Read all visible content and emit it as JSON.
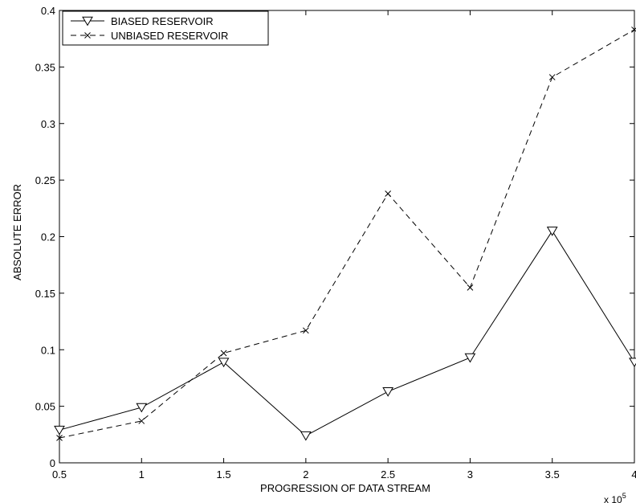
{
  "chart_data": {
    "type": "line",
    "title": "",
    "xlabel": "PROGRESSION OF DATA STREAM",
    "ylabel": "ABSOLUTE ERROR",
    "x_multiplier_label": "x 10",
    "x_multiplier_exponent": "5",
    "xlim": [
      0.5,
      4
    ],
    "ylim": [
      0,
      0.4
    ],
    "x_ticks": [
      0.5,
      1,
      1.5,
      2,
      2.5,
      3,
      3.5,
      4
    ],
    "x_tick_labels": [
      "0.5",
      "1",
      "1.5",
      "2",
      "2.5",
      "3",
      "3.5",
      "4"
    ],
    "y_ticks": [
      0,
      0.05,
      0.1,
      0.15,
      0.2,
      0.25,
      0.3,
      0.35,
      0.4
    ],
    "y_tick_labels": [
      "0",
      "0.05",
      "0.1",
      "0.15",
      "0.2",
      "0.25",
      "0.3",
      "0.35",
      "0.4"
    ],
    "grid": false,
    "legend_position": "top-left",
    "x": [
      0.5,
      1,
      1.5,
      2,
      2.5,
      3,
      3.5,
      4
    ],
    "series": [
      {
        "name": "BIASED RESERVOIR",
        "line_style": "solid",
        "marker": "triangle-down",
        "color": "#000000",
        "values": [
          0.029,
          0.049,
          0.089,
          0.024,
          0.063,
          0.093,
          0.205,
          0.089
        ]
      },
      {
        "name": "UNBIASED RESERVOIR",
        "line_style": "dashed",
        "marker": "x",
        "color": "#000000",
        "values": [
          0.022,
          0.037,
          0.097,
          0.117,
          0.238,
          0.155,
          0.341,
          0.383
        ]
      }
    ]
  }
}
